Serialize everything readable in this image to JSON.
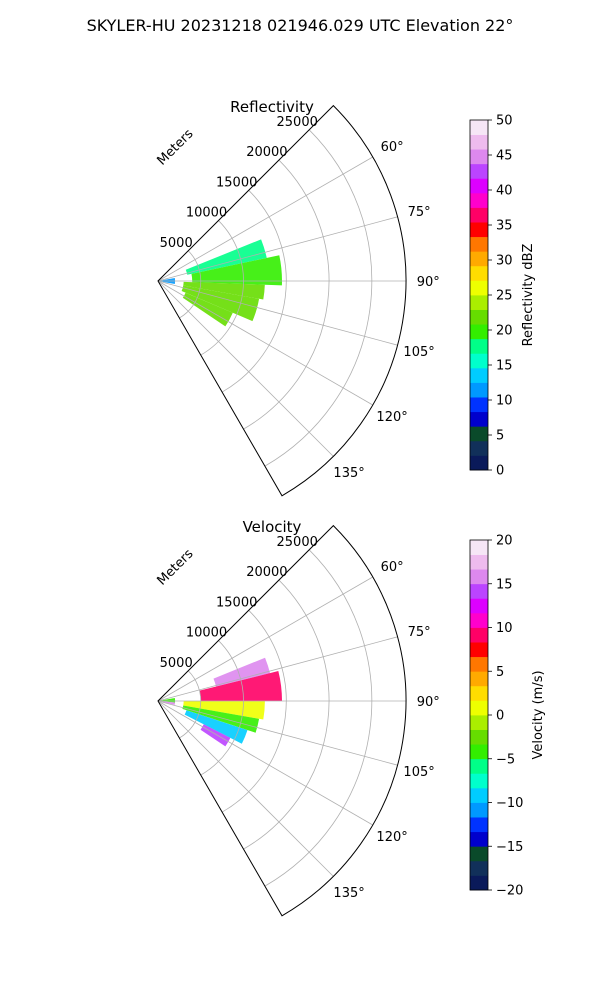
{
  "figure_title": "SKYLER-HU  20231218  021946.029 UTC Elevation 22°",
  "range_axis_label": "Meters",
  "chart_data": [
    {
      "type": "polar-sector",
      "title": "Reflectivity",
      "azimuth_range_deg": [
        45,
        150
      ],
      "azimuth_ticks": [
        "60°",
        "75°",
        "90°",
        "105°",
        "120°",
        "135°"
      ],
      "azimuth_tick_values": [
        60,
        75,
        90,
        105,
        120,
        135
      ],
      "range_max_m": 29000,
      "range_ticks": [
        "5000",
        "10000",
        "15000",
        "20000",
        "25000"
      ],
      "range_tick_values": [
        5000,
        10000,
        15000,
        20000,
        25000
      ],
      "grid": true,
      "colorbar": {
        "label": "Reflectivity dBZ",
        "min": 0,
        "max": 50,
        "ticks": [
          "0",
          "5",
          "10",
          "15",
          "20",
          "25",
          "30",
          "35",
          "40",
          "45",
          "50"
        ],
        "tick_values": [
          0,
          5,
          10,
          15,
          20,
          25,
          30,
          35,
          40,
          45,
          50
        ],
        "colors": [
          "#0a1a5a",
          "#11305a",
          "#0a4a2a",
          "#0000cc",
          "#0033ff",
          "#0099ff",
          "#00ccff",
          "#00ffcc",
          "#00ff88",
          "#33ee00",
          "#66dd00",
          "#aaee00",
          "#eeff00",
          "#ffdd00",
          "#ffaa00",
          "#ff7700",
          "#ff0000",
          "#ff0066",
          "#ff00cc",
          "#dd00ff",
          "#bb44ff",
          "#dd88ee",
          "#eebbee",
          "#f6e6f6"
        ]
      },
      "echo_regions": [
        {
          "az": [
            68,
            78
          ],
          "r": [
            3500,
            13000
          ],
          "value": 17
        },
        {
          "az": [
            78,
            92
          ],
          "r": [
            4000,
            14500
          ],
          "value": 20
        },
        {
          "az": [
            92,
            100
          ],
          "r": [
            3000,
            12500
          ],
          "value": 21
        },
        {
          "az": [
            100,
            113
          ],
          "r": [
            3000,
            12000
          ],
          "value": 22
        },
        {
          "az": [
            113,
            124
          ],
          "r": [
            3500,
            9500
          ],
          "value": 21
        },
        {
          "az": [
            80,
            100
          ],
          "r": [
            0,
            2000
          ],
          "value": 12
        }
      ]
    },
    {
      "type": "polar-sector",
      "title": "Velocity",
      "azimuth_range_deg": [
        45,
        150
      ],
      "azimuth_ticks": [
        "60°",
        "75°",
        "90°",
        "105°",
        "120°",
        "135°"
      ],
      "azimuth_tick_values": [
        60,
        75,
        90,
        105,
        120,
        135
      ],
      "range_max_m": 29000,
      "range_ticks": [
        "5000",
        "10000",
        "15000",
        "20000",
        "25000"
      ],
      "range_tick_values": [
        5000,
        10000,
        15000,
        20000,
        25000
      ],
      "grid": true,
      "colorbar": {
        "label": "Velocity (m/s)",
        "min": -20,
        "max": 20,
        "ticks": [
          "−20",
          "−15",
          "−10",
          "−5",
          "0",
          "5",
          "10",
          "15",
          "20"
        ],
        "tick_values": [
          -20,
          -15,
          -10,
          -5,
          0,
          5,
          10,
          15,
          20
        ],
        "colors": [
          "#0a1a5a",
          "#11305a",
          "#0a4a2a",
          "#0000cc",
          "#0033ff",
          "#0099ff",
          "#00ccff",
          "#00ffcc",
          "#00ff88",
          "#33ee00",
          "#66dd00",
          "#aaee00",
          "#eeff00",
          "#ffdd00",
          "#ffaa00",
          "#ff7700",
          "#ff0000",
          "#ff0066",
          "#ff00cc",
          "#dd00ff",
          "#bb44ff",
          "#dd88ee",
          "#eebbee",
          "#f6e6f6"
        ]
      },
      "echo_regions": [
        {
          "az": [
            68,
            76
          ],
          "r": [
            7000,
            13500
          ],
          "value": 15
        },
        {
          "az": [
            76,
            90
          ],
          "r": [
            5000,
            14500
          ],
          "value": 9
        },
        {
          "az": [
            90,
            100
          ],
          "r": [
            3000,
            12500
          ],
          "value": 1
        },
        {
          "az": [
            100,
            108
          ],
          "r": [
            3000,
            12000
          ],
          "value": -5
        },
        {
          "az": [
            108,
            117
          ],
          "r": [
            3500,
            11000
          ],
          "value": -10
        },
        {
          "az": [
            117,
            124
          ],
          "r": [
            6000,
            9500
          ],
          "value": 14
        },
        {
          "az": [
            80,
            95
          ],
          "r": [
            0,
            2000
          ],
          "value": -4
        },
        {
          "az": [
            95,
            103
          ],
          "r": [
            0,
            2000
          ],
          "value": 16
        }
      ]
    }
  ]
}
